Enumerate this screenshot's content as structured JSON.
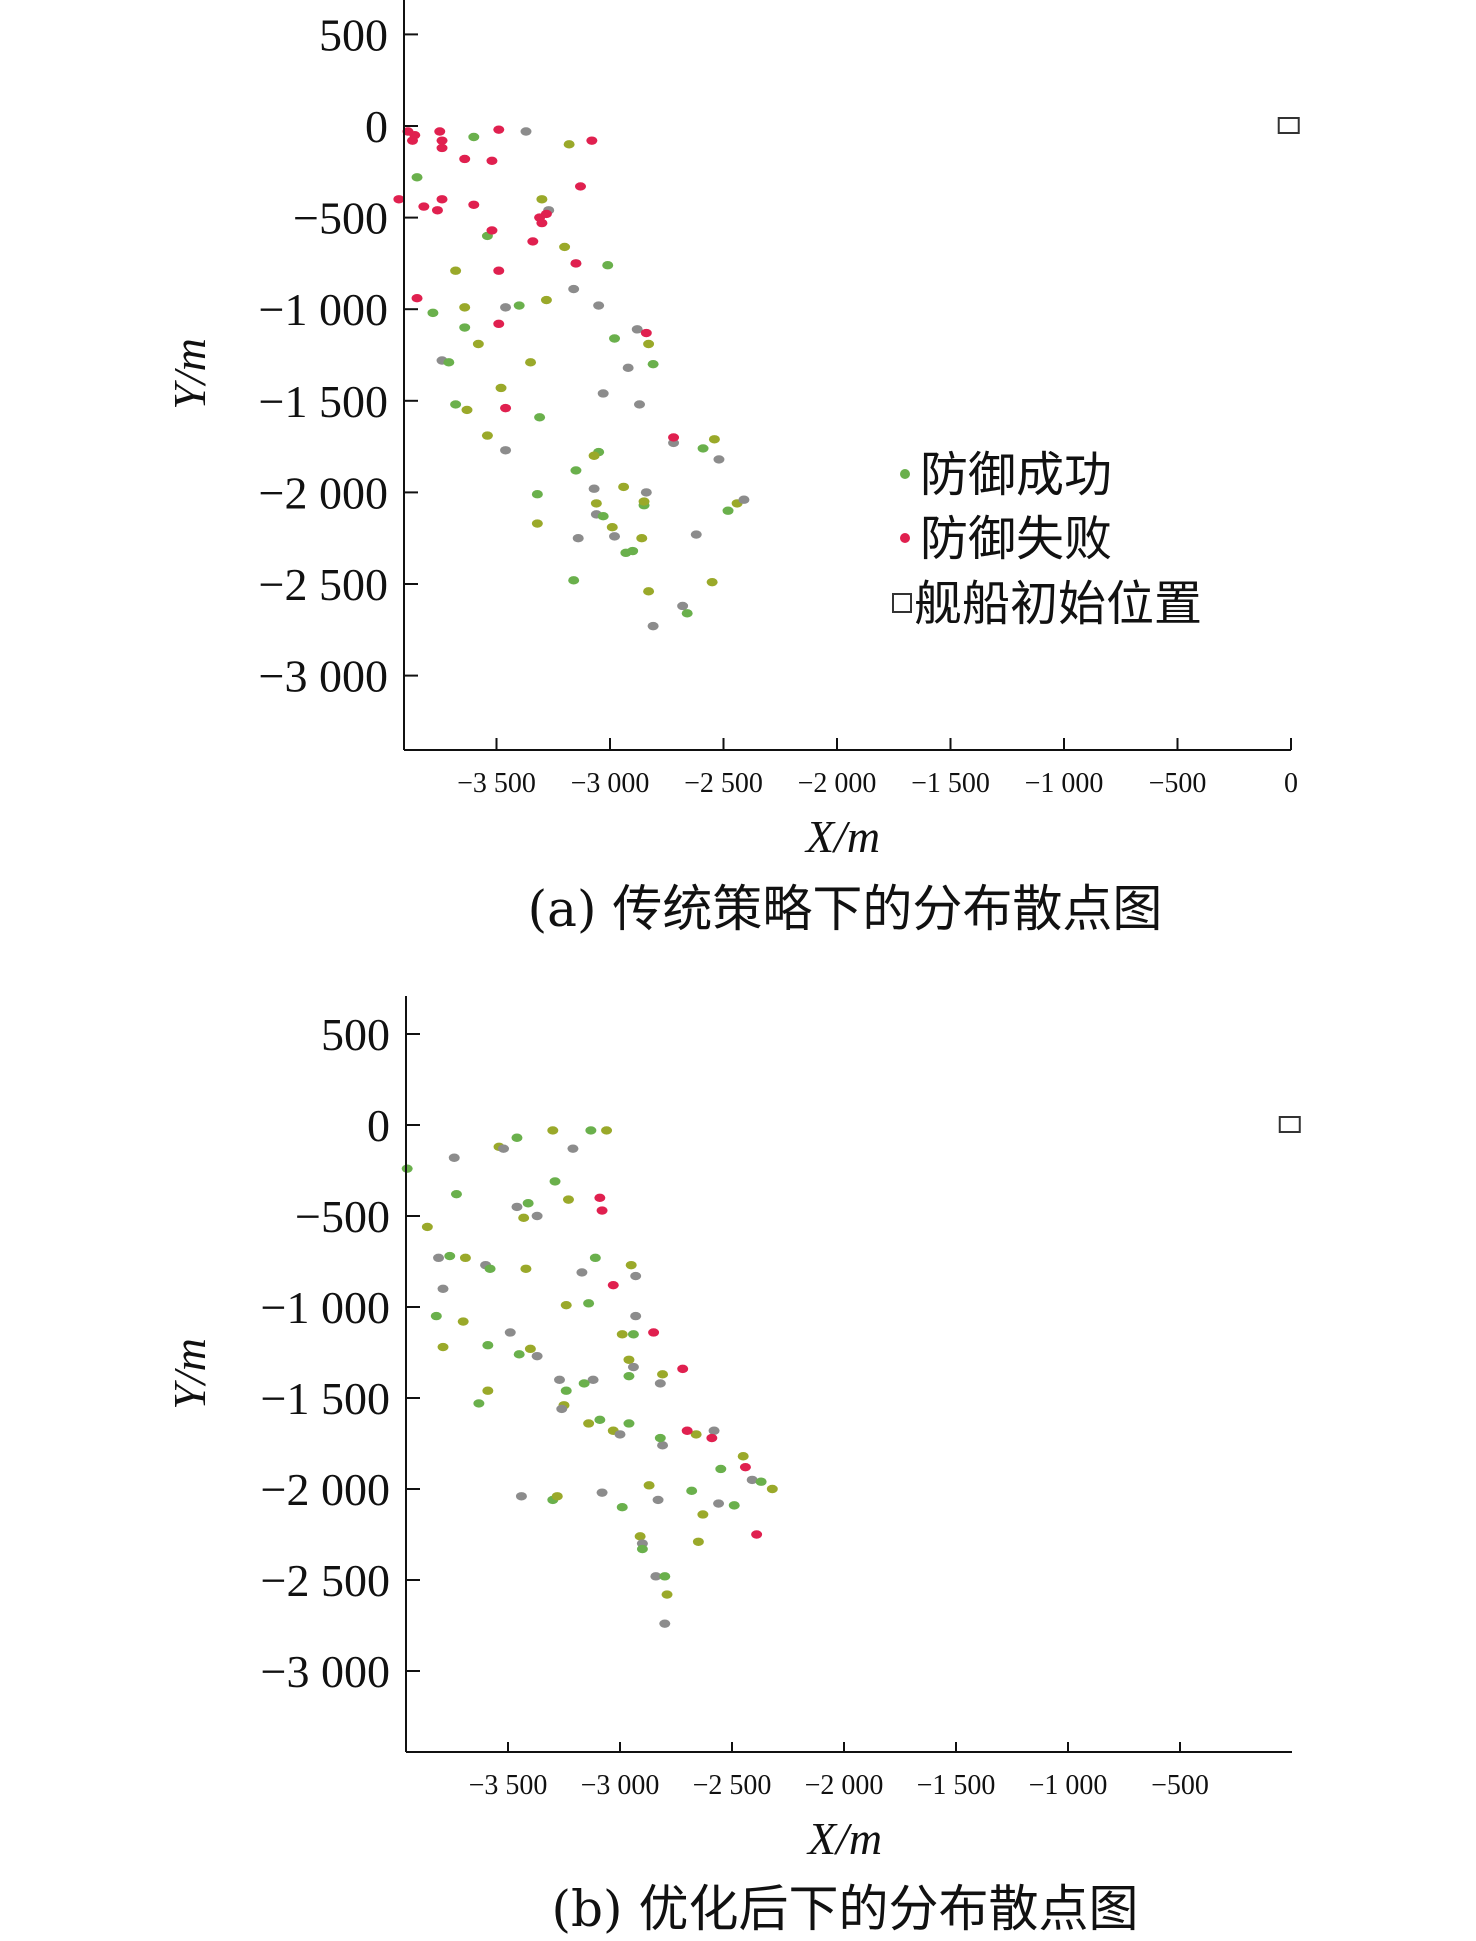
{
  "colors": {
    "success": "#6ab04c",
    "success_alt": "#9aa92a",
    "success_gray": "#8c8c8c",
    "fail": "#e0204f",
    "axis": "#111111",
    "ship_marker": "#333333"
  },
  "chart_data": [
    {
      "type": "scatter",
      "caption": "(a) 传统策略下的分布散点图",
      "xlabel": "X/m",
      "ylabel": "Y/m",
      "xlim": [
        -3900,
        0
      ],
      "ylim": [
        -3400,
        700
      ],
      "xticks": [
        -3500,
        -3000,
        -2500,
        -2000,
        -1500,
        -1000,
        -500,
        0
      ],
      "xtick_labels": [
        "−3 500",
        "−3 000",
        "−2 500",
        "−2 000",
        "−1 500",
        "−1 000",
        "−500",
        "0"
      ],
      "yticks": [
        500,
        0,
        -500,
        -1000,
        -1500,
        -2000,
        -2500,
        -3000
      ],
      "ytick_labels": [
        "500",
        "0",
        "−500",
        "−1 000",
        "−1 500",
        "−2 000",
        "−2 500",
        "−3 000"
      ],
      "legend": {
        "placement": "center-right",
        "entries": [
          {
            "label": "防御成功",
            "marker": "dot",
            "color_key": "success"
          },
          {
            "label": "防御失败",
            "marker": "dot",
            "color_key": "fail"
          },
          {
            "label": "舰船初始位置",
            "marker": "square",
            "color_key": "ship_marker"
          }
        ]
      },
      "ship": {
        "x": -10,
        "y": 0
      },
      "series": [
        {
          "name": "防御成功",
          "points": [
            [
              -3600,
              -60
            ],
            [
              -3180,
              -100
            ],
            [
              -3370,
              -30
            ],
            [
              -3850,
              -280
            ],
            [
              -3300,
              -400
            ],
            [
              -3270,
              -460
            ],
            [
              -3540,
              -600
            ],
            [
              -3200,
              -660
            ],
            [
              -3150,
              -750
            ],
            [
              -3010,
              -760
            ],
            [
              -3680,
              -790
            ],
            [
              -3160,
              -890
            ],
            [
              -3780,
              -1020
            ],
            [
              -3640,
              -990
            ],
            [
              -3460,
              -990
            ],
            [
              -3400,
              -980
            ],
            [
              -3280,
              -950
            ],
            [
              -3050,
              -980
            ],
            [
              -3640,
              -1100
            ],
            [
              -3580,
              -1190
            ],
            [
              -2880,
              -1110
            ],
            [
              -2980,
              -1160
            ],
            [
              -2830,
              -1190
            ],
            [
              -3740,
              -1280
            ],
            [
              -3710,
              -1290
            ],
            [
              -3350,
              -1290
            ],
            [
              -2920,
              -1320
            ],
            [
              -2810,
              -1300
            ],
            [
              -3480,
              -1430
            ],
            [
              -3030,
              -1460
            ],
            [
              -3680,
              -1520
            ],
            [
              -3630,
              -1550
            ],
            [
              -2870,
              -1520
            ],
            [
              -3310,
              -1590
            ],
            [
              -3540,
              -1690
            ],
            [
              -3460,
              -1770
            ],
            [
              -3050,
              -1780
            ],
            [
              -3070,
              -1800
            ],
            [
              -2720,
              -1730
            ],
            [
              -2590,
              -1760
            ],
            [
              -2540,
              -1710
            ],
            [
              -2520,
              -1820
            ],
            [
              -3150,
              -1880
            ],
            [
              -2940,
              -1970
            ],
            [
              -3070,
              -1980
            ],
            [
              -3320,
              -2010
            ],
            [
              -3060,
              -2060
            ],
            [
              -3060,
              -2120
            ],
            [
              -3030,
              -2130
            ],
            [
              -2990,
              -2190
            ],
            [
              -2980,
              -2240
            ],
            [
              -2850,
              -2070
            ],
            [
              -2850,
              -2050
            ],
            [
              -2840,
              -2000
            ],
            [
              -2480,
              -2100
            ],
            [
              -2440,
              -2060
            ],
            [
              -2410,
              -2040
            ],
            [
              -2900,
              -2320
            ],
            [
              -2860,
              -2250
            ],
            [
              -2620,
              -2230
            ],
            [
              -2930,
              -2330
            ],
            [
              -3320,
              -2170
            ],
            [
              -3140,
              -2250
            ],
            [
              -3160,
              -2480
            ],
            [
              -2550,
              -2490
            ],
            [
              -2680,
              -2620
            ],
            [
              -2660,
              -2660
            ],
            [
              -2830,
              -2540
            ],
            [
              -2810,
              -2730
            ]
          ]
        },
        {
          "name": "防御失败",
          "points": [
            [
              -3890,
              -30
            ],
            [
              -3860,
              -50
            ],
            [
              -3750,
              -30
            ],
            [
              -3740,
              -80
            ],
            [
              -3740,
              -120
            ],
            [
              -3490,
              -20
            ],
            [
              -3080,
              -80
            ],
            [
              -3870,
              -80
            ],
            [
              -3640,
              -180
            ],
            [
              -3520,
              -190
            ],
            [
              -3930,
              -400
            ],
            [
              -3820,
              -440
            ],
            [
              -3760,
              -460
            ],
            [
              -3740,
              -400
            ],
            [
              -3600,
              -430
            ],
            [
              -3130,
              -330
            ],
            [
              -3310,
              -500
            ],
            [
              -3280,
              -480
            ],
            [
              -3520,
              -570
            ],
            [
              -3300,
              -530
            ],
            [
              -3340,
              -630
            ],
            [
              -3150,
              -750
            ],
            [
              -3490,
              -790
            ],
            [
              -3850,
              -940
            ],
            [
              -3490,
              -1080
            ],
            [
              -2840,
              -1130
            ],
            [
              -3460,
              -1540
            ],
            [
              -2720,
              -1700
            ]
          ]
        }
      ]
    },
    {
      "type": "scatter",
      "caption": "(b) 优化后下的分布散点图",
      "xlabel": "X/m",
      "ylabel": "Y/m",
      "xlim": [
        -3900,
        0
      ],
      "ylim": [
        -3400,
        700
      ],
      "xticks": [
        -3500,
        -3000,
        -2500,
        -2000,
        -1500,
        -1000,
        -500
      ],
      "xtick_labels": [
        "−3 500",
        "−3 000",
        "−2 500",
        "−2 000",
        "−1 500",
        "−1 000",
        "−500"
      ],
      "yticks": [
        500,
        0,
        -500,
        -1000,
        -1500,
        -2000,
        -2500,
        -3000
      ],
      "ytick_labels": [
        "500",
        "0",
        "−500",
        "−1 000",
        "−1 500",
        "−2 000",
        "−2 500",
        "−3 000"
      ],
      "ship": {
        "x": -10,
        "y": 0
      },
      "series": [
        {
          "name": "防御成功",
          "points": [
            [
              -3950,
              -240
            ],
            [
              -3860,
              -560
            ],
            [
              -3740,
              -180
            ],
            [
              -3730,
              -380
            ],
            [
              -3540,
              -120
            ],
            [
              -3520,
              -130
            ],
            [
              -3460,
              -70
            ],
            [
              -3300,
              -30
            ],
            [
              -3210,
              -130
            ],
            [
              -3130,
              -30
            ],
            [
              -3060,
              -30
            ],
            [
              -3460,
              -450
            ],
            [
              -3410,
              -430
            ],
            [
              -3430,
              -510
            ],
            [
              -3370,
              -500
            ],
            [
              -3290,
              -310
            ],
            [
              -3230,
              -410
            ],
            [
              -3810,
              -730
            ],
            [
              -3760,
              -720
            ],
            [
              -3690,
              -730
            ],
            [
              -3600,
              -770
            ],
            [
              -3580,
              -790
            ],
            [
              -3420,
              -790
            ],
            [
              -3170,
              -810
            ],
            [
              -3110,
              -730
            ],
            [
              -2950,
              -770
            ],
            [
              -2930,
              -830
            ],
            [
              -3140,
              -980
            ],
            [
              -3240,
              -990
            ],
            [
              -3790,
              -900
            ],
            [
              -3820,
              -1050
            ],
            [
              -3700,
              -1080
            ],
            [
              -3490,
              -1140
            ],
            [
              -3450,
              -1260
            ],
            [
              -3400,
              -1230
            ],
            [
              -3370,
              -1270
            ],
            [
              -3590,
              -1210
            ],
            [
              -3790,
              -1220
            ],
            [
              -2930,
              -1050
            ],
            [
              -2940,
              -1150
            ],
            [
              -2960,
              -1290
            ],
            [
              -2940,
              -1330
            ],
            [
              -2960,
              -1380
            ],
            [
              -2810,
              -1370
            ],
            [
              -2820,
              -1420
            ],
            [
              -3630,
              -1530
            ],
            [
              -3590,
              -1460
            ],
            [
              -3270,
              -1400
            ],
            [
              -3240,
              -1460
            ],
            [
              -3250,
              -1540
            ],
            [
              -3120,
              -1400
            ],
            [
              -3090,
              -1620
            ],
            [
              -3030,
              -1680
            ],
            [
              -3000,
              -1700
            ],
            [
              -2960,
              -1640
            ],
            [
              -3140,
              -1640
            ],
            [
              -2810,
              -1760
            ],
            [
              -2820,
              -1720
            ],
            [
              -2660,
              -1700
            ],
            [
              -2580,
              -1680
            ],
            [
              -2550,
              -1890
            ],
            [
              -2450,
              -1820
            ],
            [
              -2410,
              -1950
            ],
            [
              -2370,
              -1960
            ],
            [
              -2320,
              -2000
            ],
            [
              -3440,
              -2040
            ],
            [
              -3300,
              -2060
            ],
            [
              -3280,
              -2040
            ],
            [
              -3080,
              -2020
            ],
            [
              -2990,
              -2100
            ],
            [
              -2910,
              -2260
            ],
            [
              -2900,
              -2300
            ],
            [
              -2900,
              -2330
            ],
            [
              -2870,
              -1980
            ],
            [
              -2830,
              -2060
            ],
            [
              -2680,
              -2010
            ],
            [
              -2630,
              -2140
            ],
            [
              -2560,
              -2080
            ],
            [
              -2490,
              -2090
            ],
            [
              -2650,
              -2290
            ],
            [
              -2840,
              -2480
            ],
            [
              -2800,
              -2480
            ],
            [
              -2790,
              -2580
            ],
            [
              -2800,
              -2740
            ],
            [
              -3160,
              -1420
            ],
            [
              -2990,
              -1150
            ],
            [
              -3260,
              -1560
            ]
          ]
        },
        {
          "name": "防御失败",
          "points": [
            [
              -3090,
              -400
            ],
            [
              -3080,
              -470
            ],
            [
              -3030,
              -880
            ],
            [
              -2850,
              -1140
            ],
            [
              -2720,
              -1340
            ],
            [
              -2700,
              -1680
            ],
            [
              -2590,
              -1720
            ],
            [
              -2440,
              -1880
            ],
            [
              -2390,
              -2250
            ]
          ]
        }
      ]
    }
  ]
}
